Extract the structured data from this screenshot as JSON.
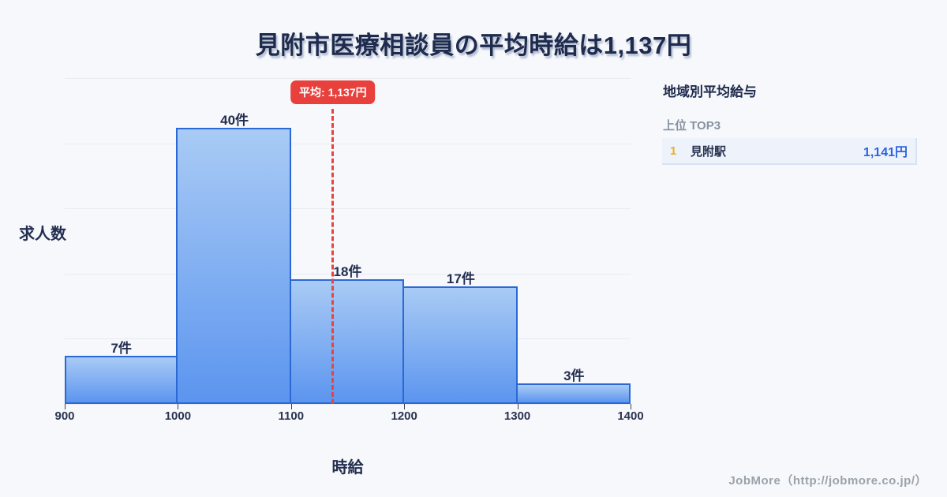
{
  "title": {
    "text": "見附市医療相談員の平均時給は1,137円"
  },
  "chart_data": {
    "type": "bar",
    "title": "見附市医療相談員の平均時給は1,137円",
    "xlabel": "時給",
    "ylabel": "求人数",
    "categories": [
      "900-1000",
      "1000-1100",
      "1100-1200",
      "1200-1300",
      "1300-1400"
    ],
    "values": [
      7,
      40,
      18,
      17,
      3
    ],
    "bar_labels": [
      "7件",
      "40件",
      "18件",
      "17件",
      "3件"
    ],
    "x_ticks": [
      "900",
      "1000",
      "1100",
      "1200",
      "1300",
      "1400"
    ],
    "x_range": [
      900,
      1400
    ],
    "ylim": [
      0,
      47.2
    ],
    "grid": "horizontal",
    "gridline_count": 6,
    "legend": "none",
    "average_line": {
      "value": 1137,
      "label": "平均: 1,137円",
      "color": "#e8403c"
    },
    "colors": {
      "bar_fill_top": "#a9cbf5",
      "bar_fill_bottom": "#5c95ef",
      "bar_border": "#2a69d5",
      "average": "#e8443f",
      "grid": "#e8ebf1"
    }
  },
  "side_panel": {
    "title": "地域別平均給与",
    "subtitle": "上位 TOP3",
    "rank_color": "#f0ac1c",
    "value_color": "#2c63df",
    "rows": [
      {
        "rank": "1",
        "name": "見附駅",
        "value": "1,141円"
      }
    ]
  },
  "footer": {
    "text": "JobMore（http://jobmore.co.jp/）"
  }
}
